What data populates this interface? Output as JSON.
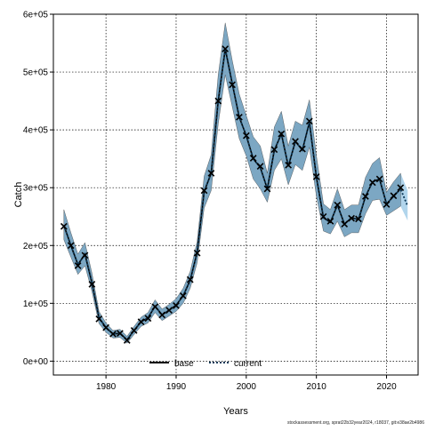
{
  "chart_data": {
    "type": "line",
    "title": "",
    "xlabel": "Years",
    "ylabel": "Catch",
    "xlim": [
      1972.5,
      2024.5
    ],
    "ylim": [
      -24000,
      600000
    ],
    "x_ticks": [
      1980,
      1990,
      2000,
      2010,
      2020
    ],
    "y_ticks": [
      {
        "value": 0,
        "label": "0e+00"
      },
      {
        "value": 100000,
        "label": "1e+05"
      },
      {
        "value": 200000,
        "label": "2e+05"
      },
      {
        "value": 300000,
        "label": "3e+05"
      },
      {
        "value": 400000,
        "label": "4e+05"
      },
      {
        "value": 500000,
        "label": "5e+05"
      },
      {
        "value": 600000,
        "label": "6e+05"
      }
    ],
    "grid": true,
    "legend_position": "bottom-center",
    "colors": {
      "base_band": "#3b6f93",
      "current_band": "#a9d0ea",
      "base_line": "#000000",
      "current_line": "#0d3857",
      "observed_marker": "#000000",
      "grid": "#000000"
    },
    "years": [
      1974,
      1975,
      1976,
      1977,
      1978,
      1979,
      1980,
      1981,
      1982,
      1983,
      1984,
      1985,
      1986,
      1987,
      1988,
      1989,
      1990,
      1991,
      1992,
      1993,
      1994,
      1995,
      1996,
      1997,
      1998,
      1999,
      2000,
      2001,
      2002,
      2003,
      2004,
      2005,
      2006,
      2007,
      2008,
      2009,
      2010,
      2011,
      2012,
      2013,
      2014,
      2015,
      2016,
      2017,
      2018,
      2019,
      2020,
      2021,
      2022,
      2023
    ],
    "series": [
      {
        "name": "base",
        "style": "solid",
        "values": [
          235000,
          200000,
          167000,
          185000,
          135000,
          75000,
          58000,
          47000,
          48000,
          37000,
          53000,
          68000,
          75000,
          95000,
          80000,
          88000,
          97000,
          113000,
          140000,
          188000,
          293000,
          325000,
          450000,
          540000,
          480000,
          422000,
          390000,
          350000,
          335000,
          298000,
          365000,
          393000,
          337000,
          380000,
          365000,
          413000,
          318000,
          248000,
          240000,
          270000,
          237000,
          248000,
          245000,
          285000,
          310000,
          315000,
          272000,
          285000,
          298000,
          null
        ],
        "lower": [
          210000,
          180000,
          150000,
          165000,
          120000,
          65000,
          50000,
          40000,
          41000,
          31000,
          46000,
          60000,
          66000,
          84000,
          70000,
          78000,
          86000,
          100000,
          126000,
          170000,
          265000,
          295000,
          410000,
          495000,
          440000,
          385000,
          355000,
          315000,
          298000,
          275000,
          330000,
          350000,
          305000,
          340000,
          330000,
          370000,
          285000,
          225000,
          220000,
          242000,
          215000,
          222000,
          222000,
          255000,
          278000,
          280000,
          252000,
          260000,
          268000,
          null
        ],
        "upper": [
          262000,
          222000,
          185000,
          205000,
          152000,
          86000,
          66000,
          53000,
          55000,
          43000,
          60000,
          76000,
          84000,
          106000,
          90000,
          98000,
          108000,
          126000,
          155000,
          207000,
          320000,
          357000,
          495000,
          585000,
          520000,
          462000,
          425000,
          388000,
          372000,
          325000,
          405000,
          432000,
          372000,
          415000,
          408000,
          452000,
          355000,
          272000,
          262000,
          298000,
          262000,
          270000,
          270000,
          318000,
          342000,
          352000,
          292000,
          310000,
          325000,
          null
        ]
      },
      {
        "name": "current",
        "style": "dotted",
        "values": [
          235000,
          200000,
          167000,
          185000,
          135000,
          75000,
          58000,
          47000,
          48000,
          37000,
          53000,
          68000,
          75000,
          95000,
          80000,
          88000,
          97000,
          113000,
          140000,
          188000,
          293000,
          325000,
          450000,
          540000,
          480000,
          422000,
          390000,
          350000,
          335000,
          298000,
          365000,
          393000,
          337000,
          380000,
          365000,
          413000,
          318000,
          248000,
          240000,
          270000,
          237000,
          248000,
          245000,
          285000,
          310000,
          315000,
          272000,
          285000,
          298000,
          268000
        ],
        "lower": [
          210000,
          180000,
          150000,
          165000,
          120000,
          65000,
          50000,
          40000,
          41000,
          31000,
          46000,
          60000,
          66000,
          84000,
          70000,
          78000,
          86000,
          100000,
          126000,
          170000,
          265000,
          295000,
          410000,
          495000,
          440000,
          385000,
          355000,
          315000,
          298000,
          275000,
          330000,
          350000,
          305000,
          340000,
          330000,
          370000,
          285000,
          225000,
          220000,
          242000,
          215000,
          222000,
          222000,
          255000,
          278000,
          280000,
          252000,
          260000,
          268000,
          243000
        ],
        "upper": [
          262000,
          222000,
          185000,
          205000,
          152000,
          86000,
          66000,
          53000,
          55000,
          43000,
          60000,
          76000,
          84000,
          106000,
          90000,
          98000,
          108000,
          126000,
          155000,
          207000,
          320000,
          357000,
          495000,
          585000,
          520000,
          462000,
          425000,
          388000,
          372000,
          325000,
          405000,
          432000,
          372000,
          415000,
          408000,
          452000,
          355000,
          272000,
          262000,
          298000,
          262000,
          270000,
          270000,
          318000,
          342000,
          352000,
          292000,
          310000,
          325000,
          295000
        ]
      }
    ],
    "observed": {
      "marker": "x",
      "values": [
        233000,
        200000,
        165000,
        183000,
        133000,
        73000,
        58000,
        47000,
        48000,
        36000,
        53000,
        68000,
        74000,
        94000,
        80000,
        88000,
        96000,
        113000,
        141000,
        187000,
        295000,
        325000,
        450000,
        540000,
        478000,
        422000,
        390000,
        351000,
        337000,
        298000,
        366000,
        393000,
        339000,
        380000,
        367000,
        415000,
        319000,
        250000,
        242000,
        270000,
        237000,
        247000,
        246000,
        285000,
        309000,
        315000,
        271000,
        286000,
        300000,
        null
      ]
    },
    "legend": [
      {
        "label": "base",
        "style": "solid"
      },
      {
        "label": "current",
        "style": "dotted"
      }
    ]
  },
  "footer_text": "stockassessment.org, sprat22b32year2024, r18037, git:e38ae2b4986"
}
